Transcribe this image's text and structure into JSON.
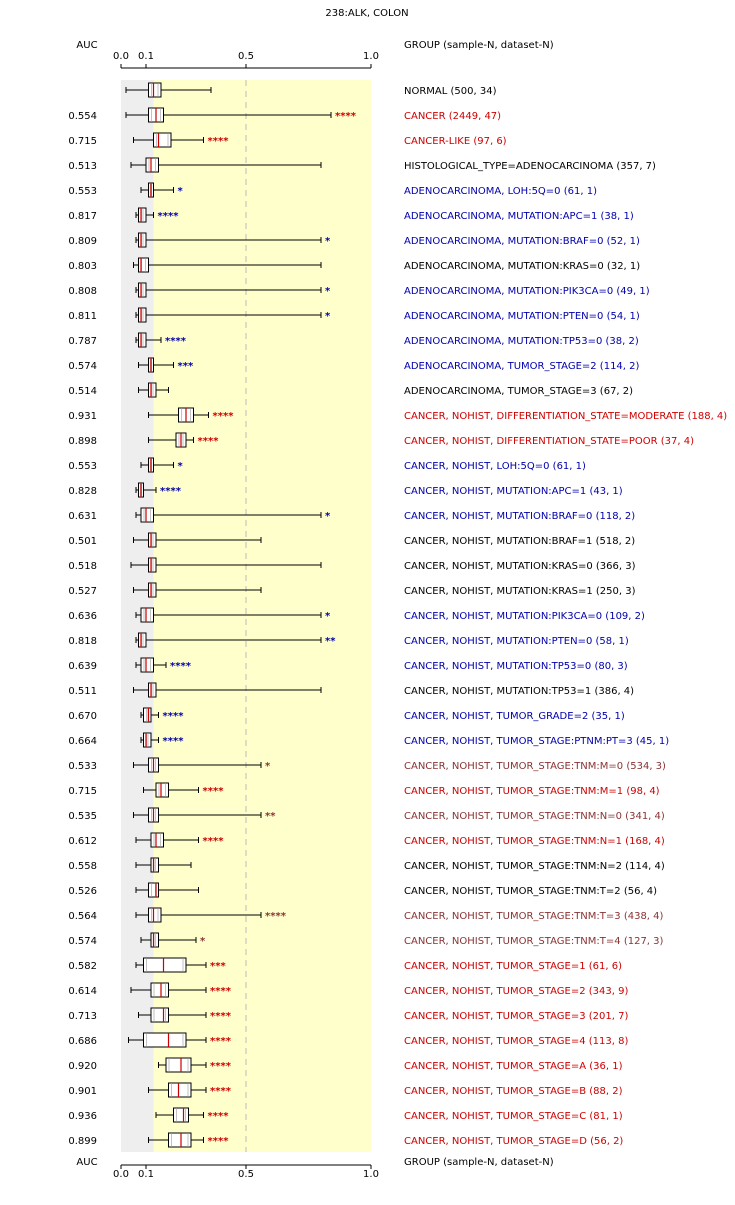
{
  "chart_data": {
    "type": "boxplot",
    "title": "238:ALK, COLON",
    "auc_header": "AUC",
    "group_header": "GROUP (sample-N, dataset-N)",
    "x_ticks": [
      {
        "value": 0.0,
        "label": "0.0"
      },
      {
        "value": 0.1,
        "label": "0.1"
      },
      {
        "value": 0.5,
        "label": "0.5"
      },
      {
        "value": 1.0,
        "label": "1.0"
      }
    ],
    "xlim": [
      0,
      1
    ],
    "colors": {
      "red": "#cc0000",
      "blue": "#0000aa",
      "black": "#000000",
      "brown": "#883333",
      "gray_band": "#eeeeee",
      "yellow_band": "#ffffcc",
      "median": "#cc0000"
    },
    "rows": [
      {
        "auc": "",
        "label": "NORMAL (500, 34)",
        "color": "black",
        "stars": "",
        "wmin": 0.02,
        "q1": 0.11,
        "med": 0.13,
        "q3": 0.16,
        "wmax": 0.36
      },
      {
        "auc": "0.554",
        "label": "CANCER (2449, 47)",
        "color": "red",
        "stars": "****",
        "wmin": 0.02,
        "q1": 0.11,
        "med": 0.14,
        "q3": 0.17,
        "wmax": 0.84
      },
      {
        "auc": "0.715",
        "label": "CANCER-LIKE (97, 6)",
        "color": "red",
        "stars": "****",
        "wmin": 0.05,
        "q1": 0.13,
        "med": 0.15,
        "q3": 0.2,
        "wmax": 0.33
      },
      {
        "auc": "0.513",
        "label": "HISTOLOGICAL_TYPE=ADENOCARCINOMA (357, 7)",
        "color": "black",
        "stars": "",
        "wmin": 0.04,
        "q1": 0.1,
        "med": 0.12,
        "q3": 0.15,
        "wmax": 0.8
      },
      {
        "auc": "0.553",
        "label": "ADENOCARCINOMA, LOH:5Q=0 (61, 1)",
        "color": "blue",
        "stars": "*",
        "wmin": 0.08,
        "q1": 0.11,
        "med": 0.12,
        "q3": 0.13,
        "wmax": 0.21
      },
      {
        "auc": "0.817",
        "label": "ADENOCARCINOMA, MUTATION:APC=1 (38, 1)",
        "color": "blue",
        "stars": "****",
        "wmin": 0.06,
        "q1": 0.07,
        "med": 0.08,
        "q3": 0.1,
        "wmax": 0.13
      },
      {
        "auc": "0.809",
        "label": "ADENOCARCINOMA, MUTATION:BRAF=0 (52, 1)",
        "color": "blue",
        "stars": "*",
        "wmin": 0.06,
        "q1": 0.07,
        "med": 0.08,
        "q3": 0.1,
        "wmax": 0.8
      },
      {
        "auc": "0.803",
        "label": "ADENOCARCINOMA, MUTATION:KRAS=0 (32, 1)",
        "color": "black",
        "stars": "",
        "wmin": 0.05,
        "q1": 0.07,
        "med": 0.08,
        "q3": 0.11,
        "wmax": 0.8
      },
      {
        "auc": "0.808",
        "label": "ADENOCARCINOMA, MUTATION:PIK3CA=0 (49, 1)",
        "color": "blue",
        "stars": "*",
        "wmin": 0.06,
        "q1": 0.07,
        "med": 0.08,
        "q3": 0.1,
        "wmax": 0.8
      },
      {
        "auc": "0.811",
        "label": "ADENOCARCINOMA, MUTATION:PTEN=0 (54, 1)",
        "color": "blue",
        "stars": "*",
        "wmin": 0.06,
        "q1": 0.07,
        "med": 0.08,
        "q3": 0.1,
        "wmax": 0.8
      },
      {
        "auc": "0.787",
        "label": "ADENOCARCINOMA, MUTATION:TP53=0 (38, 2)",
        "color": "blue",
        "stars": "****",
        "wmin": 0.06,
        "q1": 0.07,
        "med": 0.08,
        "q3": 0.1,
        "wmax": 0.16
      },
      {
        "auc": "0.574",
        "label": "ADENOCARCINOMA, TUMOR_STAGE=2 (114, 2)",
        "color": "blue",
        "stars": "***",
        "wmin": 0.07,
        "q1": 0.11,
        "med": 0.12,
        "q3": 0.13,
        "wmax": 0.21
      },
      {
        "auc": "0.514",
        "label": "ADENOCARCINOMA, TUMOR_STAGE=3 (67, 2)",
        "color": "black",
        "stars": "",
        "wmin": 0.07,
        "q1": 0.11,
        "med": 0.12,
        "q3": 0.14,
        "wmax": 0.19
      },
      {
        "auc": "0.931",
        "label": "CANCER, NOHIST, DIFFERENTIATION_STATE=MODERATE (188, 4)",
        "color": "red",
        "stars": "****",
        "wmin": 0.11,
        "q1": 0.23,
        "med": 0.26,
        "q3": 0.29,
        "wmax": 0.35
      },
      {
        "auc": "0.898",
        "label": "CANCER, NOHIST, DIFFERENTIATION_STATE=POOR (37, 4)",
        "color": "red",
        "stars": "****",
        "wmin": 0.11,
        "q1": 0.22,
        "med": 0.24,
        "q3": 0.26,
        "wmax": 0.29
      },
      {
        "auc": "0.553",
        "label": "CANCER, NOHIST, LOH:5Q=0 (61, 1)",
        "color": "blue",
        "stars": "*",
        "wmin": 0.08,
        "q1": 0.11,
        "med": 0.12,
        "q3": 0.13,
        "wmax": 0.21
      },
      {
        "auc": "0.828",
        "label": "CANCER, NOHIST, MUTATION:APC=1 (43, 1)",
        "color": "blue",
        "stars": "****",
        "wmin": 0.06,
        "q1": 0.07,
        "med": 0.08,
        "q3": 0.09,
        "wmax": 0.14
      },
      {
        "auc": "0.631",
        "label": "CANCER, NOHIST, MUTATION:BRAF=0 (118, 2)",
        "color": "blue",
        "stars": "*",
        "wmin": 0.06,
        "q1": 0.08,
        "med": 0.1,
        "q3": 0.13,
        "wmax": 0.8
      },
      {
        "auc": "0.501",
        "label": "CANCER, NOHIST, MUTATION:BRAF=1 (518, 2)",
        "color": "black",
        "stars": "",
        "wmin": 0.05,
        "q1": 0.11,
        "med": 0.12,
        "q3": 0.14,
        "wmax": 0.56
      },
      {
        "auc": "0.518",
        "label": "CANCER, NOHIST, MUTATION:KRAS=0 (366, 3)",
        "color": "black",
        "stars": "",
        "wmin": 0.04,
        "q1": 0.11,
        "med": 0.12,
        "q3": 0.14,
        "wmax": 0.8
      },
      {
        "auc": "0.527",
        "label": "CANCER, NOHIST, MUTATION:KRAS=1 (250, 3)",
        "color": "black",
        "stars": "",
        "wmin": 0.05,
        "q1": 0.11,
        "med": 0.12,
        "q3": 0.14,
        "wmax": 0.56
      },
      {
        "auc": "0.636",
        "label": "CANCER, NOHIST, MUTATION:PIK3CA=0 (109, 2)",
        "color": "blue",
        "stars": "*",
        "wmin": 0.06,
        "q1": 0.08,
        "med": 0.1,
        "q3": 0.13,
        "wmax": 0.8
      },
      {
        "auc": "0.818",
        "label": "CANCER, NOHIST, MUTATION:PTEN=0 (58, 1)",
        "color": "blue",
        "stars": "**",
        "wmin": 0.06,
        "q1": 0.07,
        "med": 0.08,
        "q3": 0.1,
        "wmax": 0.8
      },
      {
        "auc": "0.639",
        "label": "CANCER, NOHIST, MUTATION:TP53=0 (80, 3)",
        "color": "blue",
        "stars": "****",
        "wmin": 0.06,
        "q1": 0.08,
        "med": 0.1,
        "q3": 0.13,
        "wmax": 0.18
      },
      {
        "auc": "0.511",
        "label": "CANCER, NOHIST, MUTATION:TP53=1 (386, 4)",
        "color": "black",
        "stars": "",
        "wmin": 0.05,
        "q1": 0.11,
        "med": 0.12,
        "q3": 0.14,
        "wmax": 0.8
      },
      {
        "auc": "0.670",
        "label": "CANCER, NOHIST, TUMOR_GRADE=2 (35, 1)",
        "color": "blue",
        "stars": "****",
        "wmin": 0.08,
        "q1": 0.09,
        "med": 0.11,
        "q3": 0.12,
        "wmax": 0.15
      },
      {
        "auc": "0.664",
        "label": "CANCER, NOHIST, TUMOR_STAGE:PTNM:PT=3 (45, 1)",
        "color": "blue",
        "stars": "****",
        "wmin": 0.08,
        "q1": 0.09,
        "med": 0.1,
        "q3": 0.12,
        "wmax": 0.15
      },
      {
        "auc": "0.533",
        "label": "CANCER, NOHIST, TUMOR_STAGE:TNM:M=0 (534, 3)",
        "color": "brown",
        "stars": "*",
        "wmin": 0.05,
        "q1": 0.11,
        "med": 0.13,
        "q3": 0.15,
        "wmax": 0.56
      },
      {
        "auc": "0.715",
        "label": "CANCER, NOHIST, TUMOR_STAGE:TNM:M=1 (98, 4)",
        "color": "red",
        "stars": "****",
        "wmin": 0.09,
        "q1": 0.14,
        "med": 0.16,
        "q3": 0.19,
        "wmax": 0.31
      },
      {
        "auc": "0.535",
        "label": "CANCER, NOHIST, TUMOR_STAGE:TNM:N=0 (341, 4)",
        "color": "brown",
        "stars": "**",
        "wmin": 0.05,
        "q1": 0.11,
        "med": 0.13,
        "q3": 0.15,
        "wmax": 0.56
      },
      {
        "auc": "0.612",
        "label": "CANCER, NOHIST, TUMOR_STAGE:TNM:N=1 (168, 4)",
        "color": "red",
        "stars": "****",
        "wmin": 0.06,
        "q1": 0.12,
        "med": 0.14,
        "q3": 0.17,
        "wmax": 0.31
      },
      {
        "auc": "0.558",
        "label": "CANCER, NOHIST, TUMOR_STAGE:TNM:N=2 (114, 4)",
        "color": "black",
        "stars": "",
        "wmin": 0.06,
        "q1": 0.12,
        "med": 0.13,
        "q3": 0.15,
        "wmax": 0.28
      },
      {
        "auc": "0.526",
        "label": "CANCER, NOHIST, TUMOR_STAGE:TNM:T=2 (56, 4)",
        "color": "black",
        "stars": "",
        "wmin": 0.06,
        "q1": 0.11,
        "med": 0.14,
        "q3": 0.15,
        "wmax": 0.31
      },
      {
        "auc": "0.564",
        "label": "CANCER, NOHIST, TUMOR_STAGE:TNM:T=3 (438, 4)",
        "color": "brown",
        "stars": "****",
        "wmin": 0.06,
        "q1": 0.11,
        "med": 0.13,
        "q3": 0.16,
        "wmax": 0.56
      },
      {
        "auc": "0.574",
        "label": "CANCER, NOHIST, TUMOR_STAGE:TNM:T=4 (127, 3)",
        "color": "brown",
        "stars": "*",
        "wmin": 0.08,
        "q1": 0.12,
        "med": 0.13,
        "q3": 0.15,
        "wmax": 0.3
      },
      {
        "auc": "0.582",
        "label": "CANCER, NOHIST, TUMOR_STAGE=1 (61, 6)",
        "color": "red",
        "stars": "***",
        "wmin": 0.06,
        "q1": 0.09,
        "med": 0.17,
        "q3": 0.26,
        "wmax": 0.34
      },
      {
        "auc": "0.614",
        "label": "CANCER, NOHIST, TUMOR_STAGE=2 (343, 9)",
        "color": "red",
        "stars": "****",
        "wmin": 0.04,
        "q1": 0.12,
        "med": 0.16,
        "q3": 0.19,
        "wmax": 0.34
      },
      {
        "auc": "0.713",
        "label": "CANCER, NOHIST, TUMOR_STAGE=3 (201, 7)",
        "color": "red",
        "stars": "****",
        "wmin": 0.07,
        "q1": 0.12,
        "med": 0.17,
        "q3": 0.19,
        "wmax": 0.34
      },
      {
        "auc": "0.686",
        "label": "CANCER, NOHIST, TUMOR_STAGE=4 (113, 8)",
        "color": "red",
        "stars": "****",
        "wmin": 0.03,
        "q1": 0.09,
        "med": 0.19,
        "q3": 0.26,
        "wmax": 0.34
      },
      {
        "auc": "0.920",
        "label": "CANCER, NOHIST, TUMOR_STAGE=A (36, 1)",
        "color": "red",
        "stars": "****",
        "wmin": 0.15,
        "q1": 0.18,
        "med": 0.24,
        "q3": 0.28,
        "wmax": 0.34
      },
      {
        "auc": "0.901",
        "label": "CANCER, NOHIST, TUMOR_STAGE=B (88, 2)",
        "color": "red",
        "stars": "****",
        "wmin": 0.11,
        "q1": 0.19,
        "med": 0.23,
        "q3": 0.28,
        "wmax": 0.34
      },
      {
        "auc": "0.936",
        "label": "CANCER, NOHIST, TUMOR_STAGE=C (81, 1)",
        "color": "red",
        "stars": "****",
        "wmin": 0.14,
        "q1": 0.21,
        "med": 0.25,
        "q3": 0.27,
        "wmax": 0.33
      },
      {
        "auc": "0.899",
        "label": "CANCER, NOHIST, TUMOR_STAGE=D (56, 2)",
        "color": "red",
        "stars": "****",
        "wmin": 0.11,
        "q1": 0.19,
        "med": 0.24,
        "q3": 0.28,
        "wmax": 0.33
      }
    ]
  }
}
